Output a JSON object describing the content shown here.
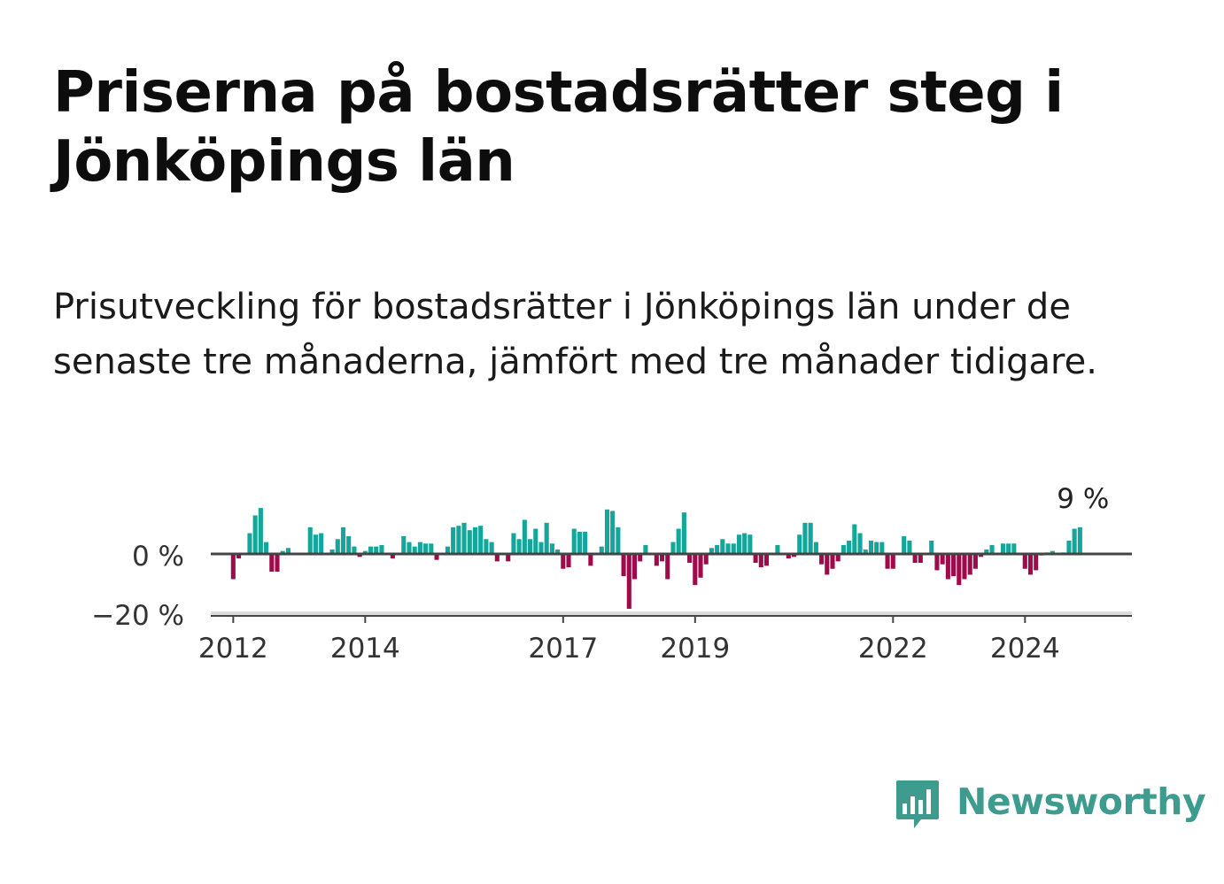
{
  "title": "Priserna på bostadsrätter steg i Jönköpings län",
  "subtitle": "Prisutveckling för bostadsrätter i Jönköpings län under de senaste tre månaderna, jämfört med tre månader tidigare.",
  "brand": {
    "name": "Newsworthy",
    "color": "#3e9c8f",
    "icon": "newsworthy-logo-icon"
  },
  "colors": {
    "positive": "#14a59b",
    "negative": "#9e0b4b",
    "axis": "#444444",
    "grid": "#cccccc"
  },
  "chart_data": {
    "type": "bar",
    "title": "",
    "xlabel": "",
    "ylabel": "",
    "ylim": [
      -21,
      21
    ],
    "yticks": [
      0,
      -20
    ],
    "ytick_labels": [
      "0 %",
      "−20 %"
    ],
    "xlim": [
      2011.66,
      2025.62
    ],
    "xticks": [
      2012,
      2014,
      2017,
      2019,
      2022,
      2024
    ],
    "last_value_label": "9 %",
    "series": [
      {
        "start": 2012.0,
        "step": 0.08333,
        "values": [
          -8.5,
          -1.5,
          0,
          7,
          13,
          15.5,
          4,
          -6,
          -6,
          1,
          2,
          0,
          0,
          0,
          9,
          6.5,
          7,
          0,
          1.5,
          5,
          9,
          6,
          2.5,
          -1,
          1,
          2.5,
          2.5,
          3,
          0,
          -1.5,
          0,
          6,
          4,
          2.5,
          4,
          3.5,
          3.5,
          -2,
          0,
          2.5,
          9,
          9.5,
          10.5,
          8,
          9,
          9.5,
          5,
          4,
          -2.5,
          0,
          -2.5,
          7,
          5,
          11.5,
          5,
          8.5,
          4,
          10.5,
          3.5,
          1.5,
          -5,
          -4.5,
          8.5,
          7.5,
          7.5,
          -4,
          0,
          2.5,
          15,
          14.5,
          9,
          -7.5,
          -18.5,
          -8.5,
          -2.5,
          3,
          0,
          -4,
          -2.5,
          -8.5,
          4,
          8.5,
          14,
          -3,
          -10.5,
          -8,
          -3.5,
          2,
          3,
          5,
          3.5,
          3.5,
          6.5,
          7,
          6.5,
          -3,
          -4.5,
          -4,
          0,
          3,
          0,
          -1.5,
          -1,
          6.5,
          10.5,
          10.5,
          4,
          -3.5,
          -7,
          -5,
          -2.5,
          3,
          4.5,
          10,
          7,
          1.5,
          4.5,
          4,
          4,
          -5,
          -5,
          0,
          6,
          4.5,
          -3,
          -3,
          0,
          4.5,
          -5.5,
          -3.5,
          -8.5,
          -7.5,
          -10.5,
          -8.5,
          -7,
          -5,
          -1,
          1.5,
          3,
          0,
          3.5,
          3.5,
          3.5,
          0,
          -5,
          -7,
          -5.5,
          -0.5,
          0.5,
          1,
          0,
          0.5,
          4.5,
          8.5,
          9
        ]
      }
    ]
  }
}
